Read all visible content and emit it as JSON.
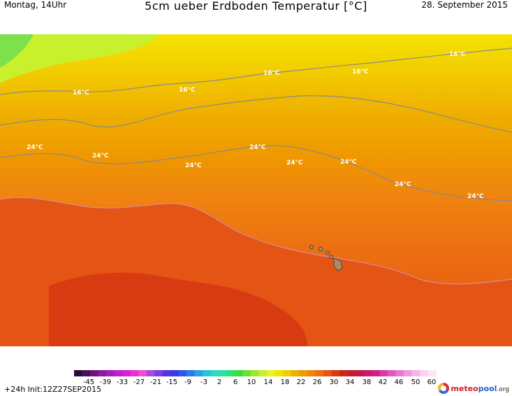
{
  "header": {
    "left": "Montag, 14Uhr",
    "title": "5cm ueber Erdboden Temperatur [°C]",
    "right": "28. September 2015"
  },
  "map": {
    "isotherm_labels": [
      {
        "text": "16°C",
        "value": 16
      },
      {
        "text": "16°C",
        "value": 16
      },
      {
        "text": "16°C",
        "value": 16
      },
      {
        "text": "16°C",
        "value": 16
      },
      {
        "text": "16°C",
        "value": 16
      },
      {
        "text": "24°C",
        "value": 24
      },
      {
        "text": "24°C",
        "value": 24
      },
      {
        "text": "24°C",
        "value": 24
      },
      {
        "text": "24°C",
        "value": 24
      },
      {
        "text": "24°C",
        "value": 24
      },
      {
        "text": "24°C",
        "value": 24
      },
      {
        "text": "24°C",
        "value": 24
      },
      {
        "text": "24°C",
        "value": 24
      }
    ],
    "band_colors": [
      "#7ee04b",
      "#c9f02d",
      "#f4e300",
      "#f2cc00",
      "#efb000",
      "#ef9a00",
      "#ef8410",
      "#ec6e12",
      "#e45414",
      "#d83a12"
    ],
    "island_color": "#a88d64"
  },
  "legend": {
    "ticks": [
      "-45",
      "-39",
      "-33",
      "-27",
      "-21",
      "-15",
      "-9",
      "-3",
      "2",
      "6",
      "10",
      "14",
      "18",
      "22",
      "26",
      "30",
      "34",
      "38",
      "42",
      "46",
      "50",
      "60"
    ],
    "colors": [
      "#2b0a3a",
      "#4a0f5c",
      "#6f137e",
      "#8e1a9f",
      "#a51dbd",
      "#c21ed0",
      "#d81fd9",
      "#e62fd8",
      "#f04ed2",
      "#a04de0",
      "#7a3ee6",
      "#5632e8",
      "#3a3ae6",
      "#3056e6",
      "#2b7be6",
      "#27a1e4",
      "#2ac2d8",
      "#2cd8c2",
      "#2be29c",
      "#2fe06c",
      "#3fdc3d",
      "#6ee034",
      "#9fe631",
      "#c9ee2a",
      "#eaf223",
      "#f4e300",
      "#f2cc00",
      "#efb000",
      "#ef9a00",
      "#ef8410",
      "#ec6e12",
      "#e45414",
      "#d83a12",
      "#c82a16",
      "#c21e2e",
      "#c6184a",
      "#ca1a68",
      "#d02088",
      "#d83aa6",
      "#e058c0",
      "#e878d2",
      "#ef98de",
      "#f4b6e8",
      "#f8d2f0",
      "#fbe6f6"
    ]
  },
  "footer": {
    "init": "+24h  Init:12Z27SEP2015",
    "logo_a": "meteo",
    "logo_b": "pool",
    "logo_c": ".org"
  }
}
